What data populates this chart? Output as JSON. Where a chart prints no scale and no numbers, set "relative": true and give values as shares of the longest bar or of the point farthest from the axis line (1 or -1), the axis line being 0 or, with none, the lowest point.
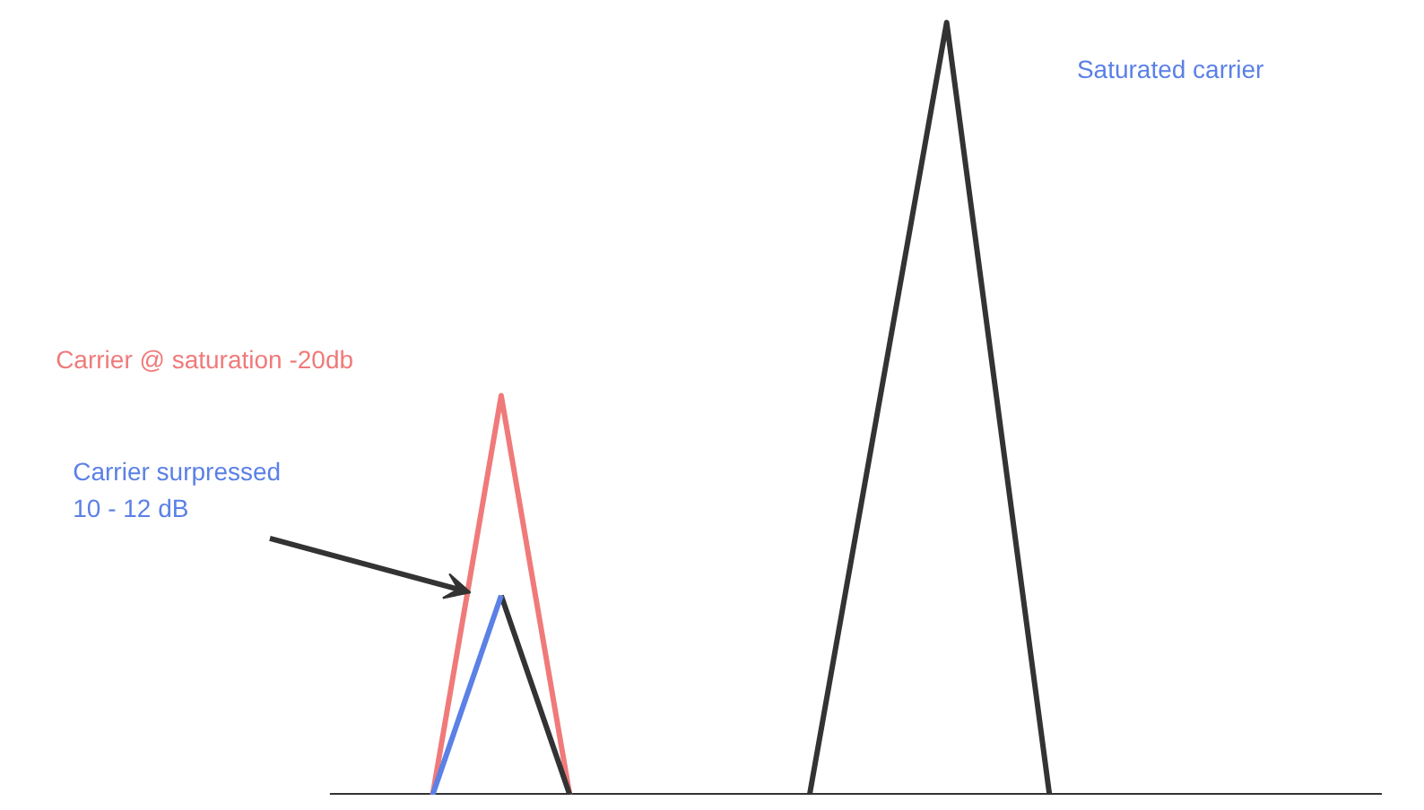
{
  "chart_data": {
    "type": "line",
    "relative": true,
    "categories": [
      null,
      null,
      null,
      null,
      null,
      null,
      null,
      null,
      null,
      null,
      null,
      null,
      null,
      null,
      null,
      null,
      null,
      null,
      null,
      null,
      null,
      null,
      null,
      null,
      null,
      null,
      null,
      null,
      null,
      null,
      null
    ],
    "series": [
      {
        "color": "#f07a7a",
        "values": [
          null,
          null,
          null,
          0,
          0.258,
          0.517,
          0.258,
          0,
          null,
          null,
          null,
          null,
          null,
          null,
          null,
          null,
          null,
          null,
          null,
          null,
          null,
          null,
          null,
          null,
          null,
          null,
          null,
          null,
          null,
          null,
          null
        ]
      },
      {
        "color": "#333333",
        "values": [
          null,
          null,
          null,
          null,
          null,
          0.258,
          0.129,
          0,
          null,
          null,
          null,
          null,
          null,
          null,
          0,
          0.25,
          0.5,
          0.75,
          1,
          0.667,
          0.333,
          0,
          null,
          null,
          null,
          null,
          null,
          null,
          null,
          null,
          null
        ]
      },
      {
        "color": "#5b80e6",
        "values": [
          null,
          null,
          null,
          0,
          0.129,
          0.258,
          null,
          null,
          null,
          null,
          null,
          null,
          null,
          null,
          null,
          null,
          null,
          null,
          null,
          null,
          null,
          null,
          null,
          null,
          null,
          null,
          null,
          null,
          null,
          null,
          null
        ]
      }
    ],
    "annotations": [
      "Saturated carrier",
      "Carrier @ saturation -20db",
      "Carrier surpressed\n10 - 12 dB"
    ],
    "grid": false,
    "tick_labels": false,
    "marker": "none",
    "line_style": "solid"
  }
}
